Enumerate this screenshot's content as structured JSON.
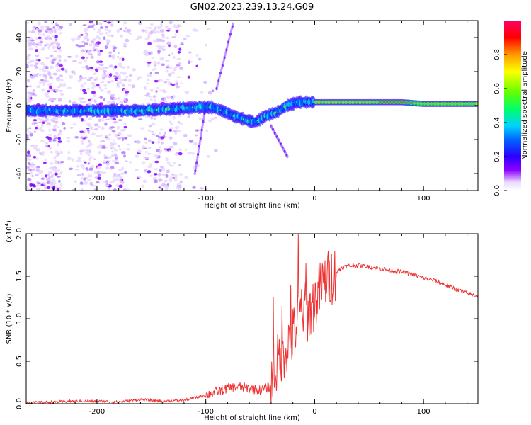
{
  "title": "GN02.2023.239.13.24.G09",
  "chart_data": [
    {
      "type": "heatmap",
      "xlabel": "Height of straight line (km)",
      "ylabel": "Frequency (Hz)",
      "xlim": [
        -265,
        150
      ],
      "ylim": [
        -50,
        50
      ],
      "xticks": [
        -200,
        -100,
        0,
        100
      ],
      "yticks": [
        -40,
        -20,
        0,
        20,
        40
      ],
      "colorbar": {
        "label": "Normalized spectral amplitude",
        "range": [
          0,
          1
        ],
        "ticks": [
          0.0,
          0.2,
          0.4,
          0.6,
          0.8
        ]
      },
      "ridge": [
        {
          "x": -265,
          "y": -3
        },
        {
          "x": -240,
          "y": -3
        },
        {
          "x": -200,
          "y": -3
        },
        {
          "x": -160,
          "y": -3
        },
        {
          "x": -130,
          "y": -2
        },
        {
          "x": -110,
          "y": -1
        },
        {
          "x": -95,
          "y": -1
        },
        {
          "x": -85,
          "y": -3
        },
        {
          "x": -75,
          "y": -6
        },
        {
          "x": -65,
          "y": -8
        },
        {
          "x": -55,
          "y": -10
        },
        {
          "x": -45,
          "y": -6
        },
        {
          "x": -35,
          "y": -4
        },
        {
          "x": -25,
          "y": 0
        },
        {
          "x": -15,
          "y": 2
        },
        {
          "x": 0,
          "y": 2
        },
        {
          "x": 20,
          "y": 2
        },
        {
          "x": 50,
          "y": 2
        },
        {
          "x": 80,
          "y": 2
        },
        {
          "x": 100,
          "y": 1
        },
        {
          "x": 150,
          "y": 1
        }
      ],
      "grid": false
    },
    {
      "type": "line",
      "xlabel": "Height of straight line (km)",
      "ylabel": "SNR (10 * v/v)",
      "y_multiplier": "(x10",
      "y_multiplier_exp": "4",
      "y_multiplier_close": ")",
      "xlim": [
        -265,
        150
      ],
      "ylim": [
        0,
        2.0
      ],
      "xticks": [
        -200,
        -100,
        0,
        100
      ],
      "yticks": [
        0.0,
        0.5,
        1.0,
        1.5,
        2.0
      ],
      "color": "#ee3333",
      "series": [
        {
          "x": [
            -265,
            -240,
            -220,
            -200,
            -180,
            -160,
            -140,
            -120,
            -100,
            -90,
            -80,
            -70,
            -60,
            -50,
            -40,
            -35,
            -30,
            -25,
            -20,
            -15,
            -10,
            -5,
            0,
            5,
            10,
            15,
            20,
            25,
            30,
            40,
            50,
            60,
            70,
            80,
            90,
            100,
            110,
            120,
            130,
            140,
            150
          ],
          "y": [
            0.01,
            0.02,
            0.03,
            0.03,
            0.02,
            0.05,
            0.03,
            0.04,
            0.1,
            0.14,
            0.18,
            0.2,
            0.18,
            0.16,
            0.2,
            0.45,
            0.6,
            0.7,
            0.8,
            1.0,
            1.1,
            1.05,
            1.2,
            1.35,
            1.45,
            1.5,
            1.55,
            1.6,
            1.62,
            1.63,
            1.61,
            1.59,
            1.57,
            1.55,
            1.52,
            1.48,
            1.45,
            1.4,
            1.35,
            1.3,
            1.27
          ]
        }
      ],
      "spikes": [
        {
          "x": -38,
          "y": 1.25
        },
        {
          "x": -30,
          "y": 1.15
        },
        {
          "x": -22,
          "y": 1.4
        },
        {
          "x": -15,
          "y": 2.0
        },
        {
          "x": -12,
          "y": 1.35
        },
        {
          "x": -8,
          "y": 1.65
        },
        {
          "x": -4,
          "y": 1.3
        }
      ],
      "grid": false
    }
  ]
}
